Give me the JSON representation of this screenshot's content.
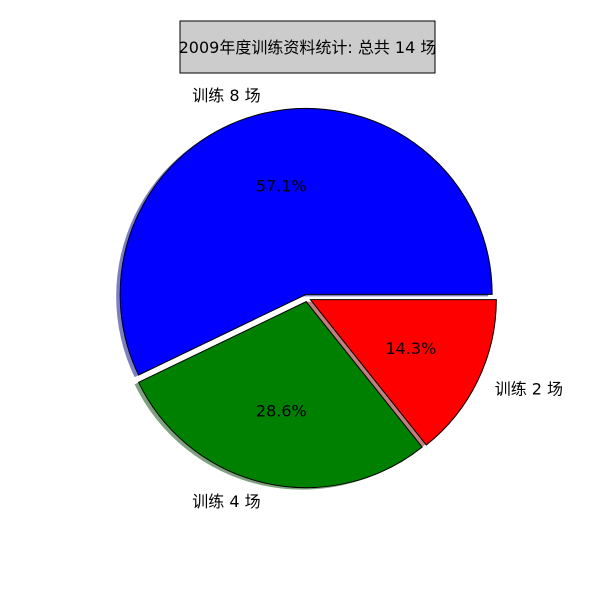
{
  "chart_data": {
    "type": "pie",
    "title": "2009年度训练资料统计: 总共 14 场",
    "slices": [
      {
        "label": "训练 8 场",
        "value": 8,
        "percent_label": "57.1%",
        "color": "#0000ff"
      },
      {
        "label": "训练 4 场",
        "value": 4,
        "percent_label": "28.6%",
        "color": "#008000"
      },
      {
        "label": "训练 2 场",
        "value": 2,
        "percent_label": "14.3%",
        "color": "#ff0000"
      }
    ],
    "shadow": true,
    "explode": [
      0.02,
      0.02,
      0.02
    ],
    "title_box_color": "#cccccc",
    "edge_color": "#000000"
  }
}
